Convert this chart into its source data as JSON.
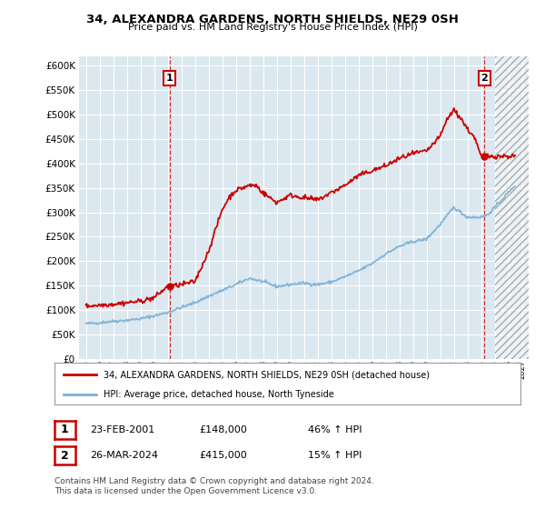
{
  "title": "34, ALEXANDRA GARDENS, NORTH SHIELDS, NE29 0SH",
  "subtitle": "Price paid vs. HM Land Registry's House Price Index (HPI)",
  "ylabel_ticks": [
    "£0",
    "£50K",
    "£100K",
    "£150K",
    "£200K",
    "£250K",
    "£300K",
    "£350K",
    "£400K",
    "£450K",
    "£500K",
    "£550K",
    "£600K"
  ],
  "ytick_values": [
    0,
    50000,
    100000,
    150000,
    200000,
    250000,
    300000,
    350000,
    400000,
    450000,
    500000,
    550000,
    600000
  ],
  "ylim": [
    0,
    620000
  ],
  "xlim_start": 1994.5,
  "xlim_end": 2027.5,
  "legend_line1": "34, ALEXANDRA GARDENS, NORTH SHIELDS, NE29 0SH (detached house)",
  "legend_line2": "HPI: Average price, detached house, North Tyneside",
  "point1_date": "23-FEB-2001",
  "point1_price": "£148,000",
  "point1_hpi": "46% ↑ HPI",
  "point2_date": "26-MAR-2024",
  "point2_price": "£415,000",
  "point2_hpi": "15% ↑ HPI",
  "footer": "Contains HM Land Registry data © Crown copyright and database right 2024.\nThis data is licensed under the Open Government Licence v3.0.",
  "red_color": "#cc0000",
  "blue_color": "#7ab0d4",
  "point1_x": 2001.15,
  "point1_y": 148000,
  "point2_x": 2024.25,
  "point2_y": 415000,
  "hatch_start": 2025.0,
  "plot_bg": "#dce8f0"
}
